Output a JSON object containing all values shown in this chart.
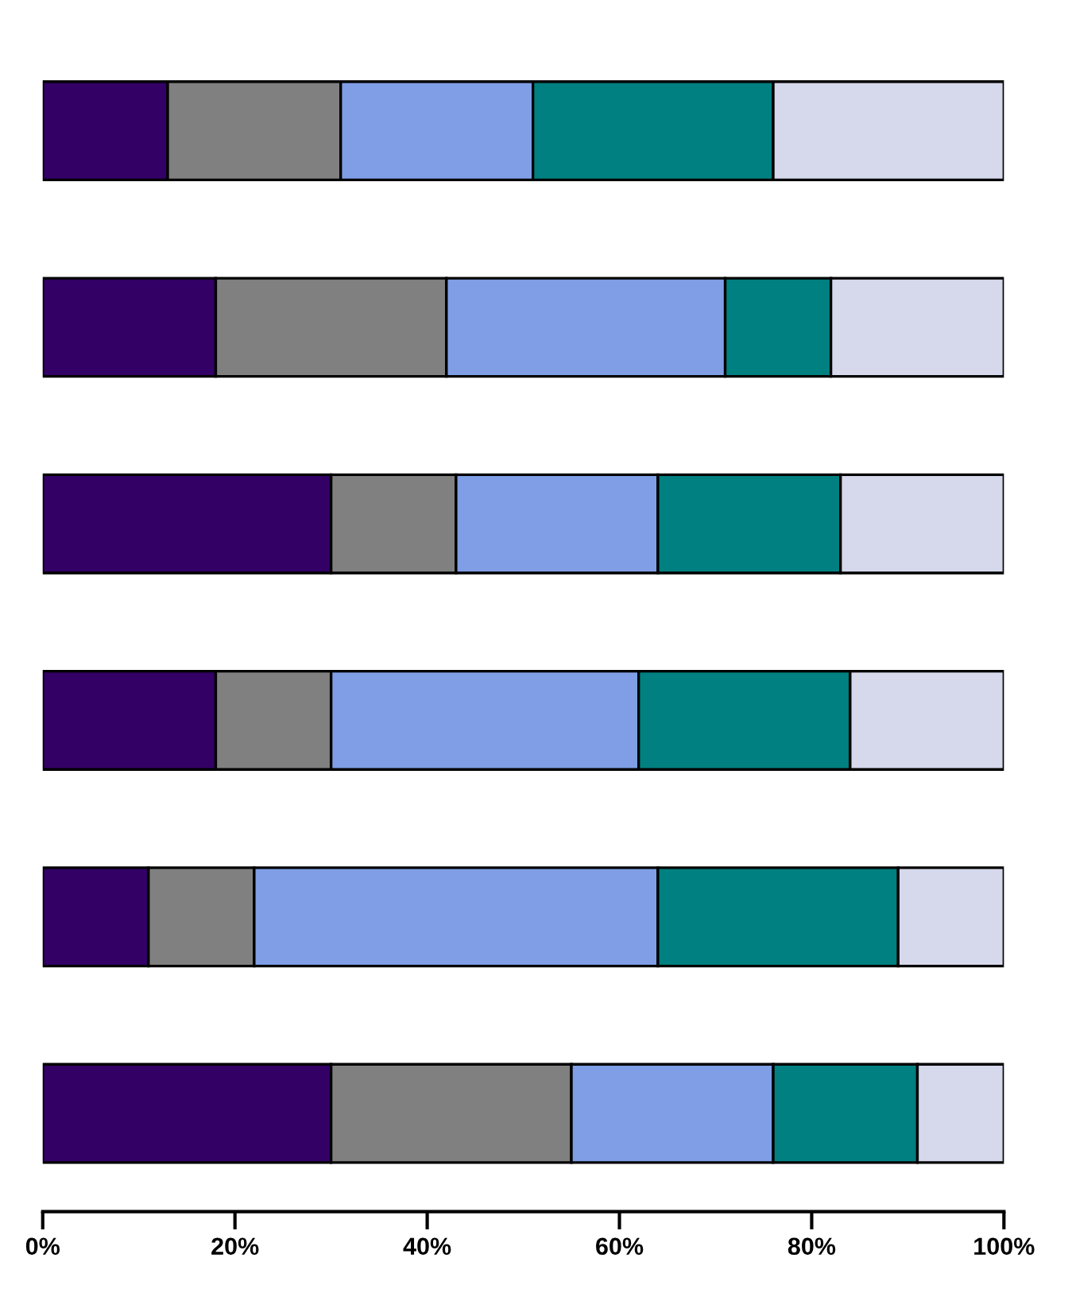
{
  "chart_data": {
    "type": "bar",
    "orientation": "horizontal",
    "stacked": true,
    "categories": [
      null,
      null,
      null,
      null,
      null,
      null
    ],
    "series": [
      {
        "color": "#330066",
        "values": [
          13,
          18,
          30,
          18,
          11,
          30
        ]
      },
      {
        "color": "#808080",
        "values": [
          18,
          24,
          13,
          12,
          11,
          25
        ]
      },
      {
        "color": "#7f9ee6",
        "values": [
          20,
          29,
          21,
          32,
          42,
          21
        ]
      },
      {
        "color": "#008080",
        "values": [
          25,
          11,
          19,
          22,
          25,
          15
        ]
      },
      {
        "color": "#d6d8ec",
        "values": [
          24,
          18,
          17,
          16,
          11,
          9
        ]
      }
    ],
    "xlim": [
      0,
      100
    ],
    "xticks": [
      {
        "value": 0,
        "label": "0%"
      },
      {
        "value": 20,
        "label": "20%"
      },
      {
        "value": 40,
        "label": "40%"
      },
      {
        "value": 60,
        "label": "60%"
      },
      {
        "value": 80,
        "label": "80%"
      },
      {
        "value": 100,
        "label": "100%"
      }
    ],
    "tick_labels": "x",
    "grid": false,
    "legend": false
  }
}
